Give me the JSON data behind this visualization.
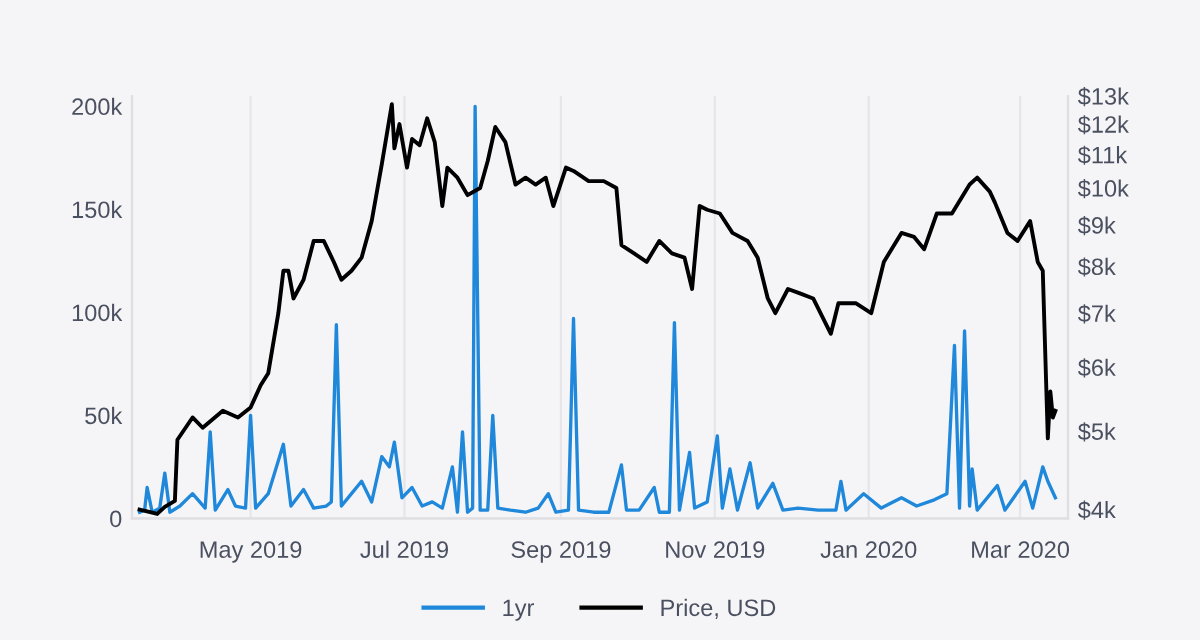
{
  "chart_data": {
    "type": "line",
    "legend": "bottom",
    "grid": "x",
    "log": "y2",
    "line_style": "solid",
    "marker": "none",
    "xlim": [
      "2019-03-15",
      "2020-03-20"
    ],
    "xticks": [
      {
        "value": "2019-05-01",
        "label": "May 2019"
      },
      {
        "value": "2019-07-01",
        "label": "Jul 2019"
      },
      {
        "value": "2019-09-01",
        "label": "Sep 2019"
      },
      {
        "value": "2019-11-01",
        "label": "Nov 2019"
      },
      {
        "value": "2020-01-01",
        "label": "Jan 2020"
      },
      {
        "value": "2020-03-01",
        "label": "Mar 2020"
      }
    ],
    "ylim": [
      0,
      205000
    ],
    "yticks": [
      {
        "value": 0,
        "label": "0"
      },
      {
        "value": 50000,
        "label": "50k"
      },
      {
        "value": 100000,
        "label": "100k"
      },
      {
        "value": 150000,
        "label": "150k"
      },
      {
        "value": 200000,
        "label": "200k"
      }
    ],
    "y2lim": [
      3900,
      13000
    ],
    "y2ticks": [
      {
        "value": 4000,
        "label": "$4k"
      },
      {
        "value": 5000,
        "label": "$5k"
      },
      {
        "value": 6000,
        "label": "$6k"
      },
      {
        "value": 7000,
        "label": "$7k"
      },
      {
        "value": 8000,
        "label": "$8k"
      },
      {
        "value": 9000,
        "label": "$9k"
      },
      {
        "value": 10000,
        "label": "$10k"
      },
      {
        "value": 11000,
        "label": "$11k"
      },
      {
        "value": 12000,
        "label": "$12k"
      },
      {
        "value": 13000,
        "label": "$13k"
      }
    ],
    "series": [
      {
        "name": "1yr",
        "color": "#1f88db",
        "x": [
          "2019-03-18",
          "2019-03-20",
          "2019-03-21",
          "2019-03-23",
          "2019-03-26",
          "2019-03-28",
          "2019-03-30",
          "2019-04-03",
          "2019-04-08",
          "2019-04-13",
          "2019-04-15",
          "2019-04-17",
          "2019-04-22",
          "2019-04-25",
          "2019-04-29",
          "2019-05-01",
          "2019-05-03",
          "2019-05-08",
          "2019-05-14",
          "2019-05-17",
          "2019-05-22",
          "2019-05-26",
          "2019-05-31",
          "2019-06-02",
          "2019-06-04",
          "2019-06-06",
          "2019-06-10",
          "2019-06-14",
          "2019-06-18",
          "2019-06-22",
          "2019-06-25",
          "2019-06-27",
          "2019-06-30",
          "2019-07-04",
          "2019-07-08",
          "2019-07-12",
          "2019-07-16",
          "2019-07-20",
          "2019-07-22",
          "2019-07-24",
          "2019-07-26",
          "2019-07-28",
          "2019-07-29",
          "2019-07-31",
          "2019-08-03",
          "2019-08-05",
          "2019-08-07",
          "2019-08-12",
          "2019-08-18",
          "2019-08-23",
          "2019-08-27",
          "2019-08-30",
          "2019-09-04",
          "2019-09-06",
          "2019-09-08",
          "2019-09-14",
          "2019-09-20",
          "2019-09-25",
          "2019-09-27",
          "2019-10-02",
          "2019-10-08",
          "2019-10-10",
          "2019-10-14",
          "2019-10-16",
          "2019-10-18",
          "2019-10-22",
          "2019-10-24",
          "2019-10-29",
          "2019-11-02",
          "2019-11-04",
          "2019-11-07",
          "2019-11-10",
          "2019-11-15",
          "2019-11-18",
          "2019-11-24",
          "2019-11-28",
          "2019-12-04",
          "2019-12-12",
          "2019-12-19",
          "2019-12-21",
          "2019-12-23",
          "2019-12-30",
          "2020-01-06",
          "2020-01-14",
          "2020-01-20",
          "2020-01-27",
          "2020-02-01",
          "2020-02-04",
          "2020-02-06",
          "2020-02-08",
          "2020-02-10",
          "2020-02-11",
          "2020-02-13",
          "2020-02-21",
          "2020-02-24",
          "2020-03-03",
          "2020-03-06",
          "2020-03-10",
          "2020-03-12",
          "2020-03-15"
        ],
        "values": [
          3000,
          4000,
          15000,
          3000,
          5000,
          22000,
          3000,
          6000,
          12000,
          5000,
          42000,
          4000,
          14000,
          6000,
          5000,
          50000,
          5000,
          12000,
          36000,
          6000,
          14000,
          5000,
          6000,
          8000,
          94000,
          6000,
          12000,
          18000,
          8000,
          30000,
          25000,
          37000,
          10000,
          15000,
          6000,
          8000,
          5000,
          25000,
          3000,
          42000,
          3000,
          5000,
          200000,
          4000,
          4000,
          50000,
          5000,
          4000,
          3000,
          5000,
          12000,
          3000,
          4000,
          97000,
          4000,
          3000,
          3000,
          26000,
          4000,
          4000,
          15000,
          3000,
          3000,
          95000,
          4000,
          32000,
          5000,
          8000,
          40000,
          5000,
          24000,
          4000,
          27000,
          5000,
          17000,
          4000,
          5000,
          4000,
          4000,
          18000,
          4000,
          12000,
          5000,
          10000,
          6000,
          9000,
          12000,
          84000,
          5000,
          91000,
          6000,
          24000,
          4000,
          16000,
          4000,
          18000,
          5000,
          25000,
          18000,
          10000
        ]
      },
      {
        "name": "Price, USD",
        "color": "#000000",
        "axis": "y2",
        "x": [
          "2019-03-18",
          "2019-03-25",
          "2019-03-28",
          "2019-04-01",
          "2019-04-02",
          "2019-04-08",
          "2019-04-12",
          "2019-04-20",
          "2019-04-26",
          "2019-05-01",
          "2019-05-05",
          "2019-05-08",
          "2019-05-12",
          "2019-05-14",
          "2019-05-16",
          "2019-05-18",
          "2019-05-22",
          "2019-05-26",
          "2019-05-30",
          "2019-06-03",
          "2019-06-06",
          "2019-06-10",
          "2019-06-14",
          "2019-06-18",
          "2019-06-22",
          "2019-06-26",
          "2019-06-27",
          "2019-06-29",
          "2019-07-02",
          "2019-07-04",
          "2019-07-07",
          "2019-07-10",
          "2019-07-13",
          "2019-07-16",
          "2019-07-18",
          "2019-07-22",
          "2019-07-26",
          "2019-07-31",
          "2019-08-03",
          "2019-08-06",
          "2019-08-10",
          "2019-08-14",
          "2019-08-18",
          "2019-08-22",
          "2019-08-26",
          "2019-08-29",
          "2019-09-03",
          "2019-09-06",
          "2019-09-12",
          "2019-09-18",
          "2019-09-23",
          "2019-09-25",
          "2019-09-30",
          "2019-10-05",
          "2019-10-10",
          "2019-10-15",
          "2019-10-20",
          "2019-10-23",
          "2019-10-26",
          "2019-10-29",
          "2019-11-03",
          "2019-11-08",
          "2019-11-14",
          "2019-11-18",
          "2019-11-22",
          "2019-11-25",
          "2019-11-30",
          "2019-12-05",
          "2019-12-10",
          "2019-12-17",
          "2019-12-20",
          "2019-12-27",
          "2020-01-02",
          "2020-01-07",
          "2020-01-14",
          "2020-01-19",
          "2020-01-23",
          "2020-01-28",
          "2020-02-03",
          "2020-02-10",
          "2020-02-13",
          "2020-02-18",
          "2020-02-20",
          "2020-02-25",
          "2020-02-29",
          "2020-03-05",
          "2020-03-08",
          "2020-03-10",
          "2020-03-12",
          "2020-03-13",
          "2020-03-14",
          "2020-03-15"
        ],
        "values": [
          4000,
          3950,
          4030,
          4100,
          4880,
          5200,
          5050,
          5300,
          5200,
          5350,
          5700,
          5900,
          7000,
          7900,
          7900,
          7300,
          7700,
          8600,
          8600,
          8100,
          7700,
          7900,
          8200,
          9100,
          10700,
          12700,
          11200,
          12000,
          10600,
          11500,
          11300,
          12200,
          11400,
          9500,
          10600,
          10300,
          9800,
          10000,
          10800,
          11900,
          11400,
          10100,
          10300,
          10100,
          10300,
          9500,
          10600,
          10500,
          10200,
          10200,
          10000,
          8500,
          8300,
          8100,
          8600,
          8300,
          8200,
          7500,
          9500,
          9400,
          9300,
          8800,
          8600,
          8200,
          7300,
          7000,
          7500,
          7400,
          7300,
          6600,
          7200,
          7200,
          7000,
          8100,
          8800,
          8700,
          8400,
          9300,
          9300,
          10100,
          10300,
          9900,
          9600,
          8800,
          8600,
          9100,
          8100,
          7900,
          4900,
          5600,
          5200,
          5300
        ]
      }
    ]
  }
}
